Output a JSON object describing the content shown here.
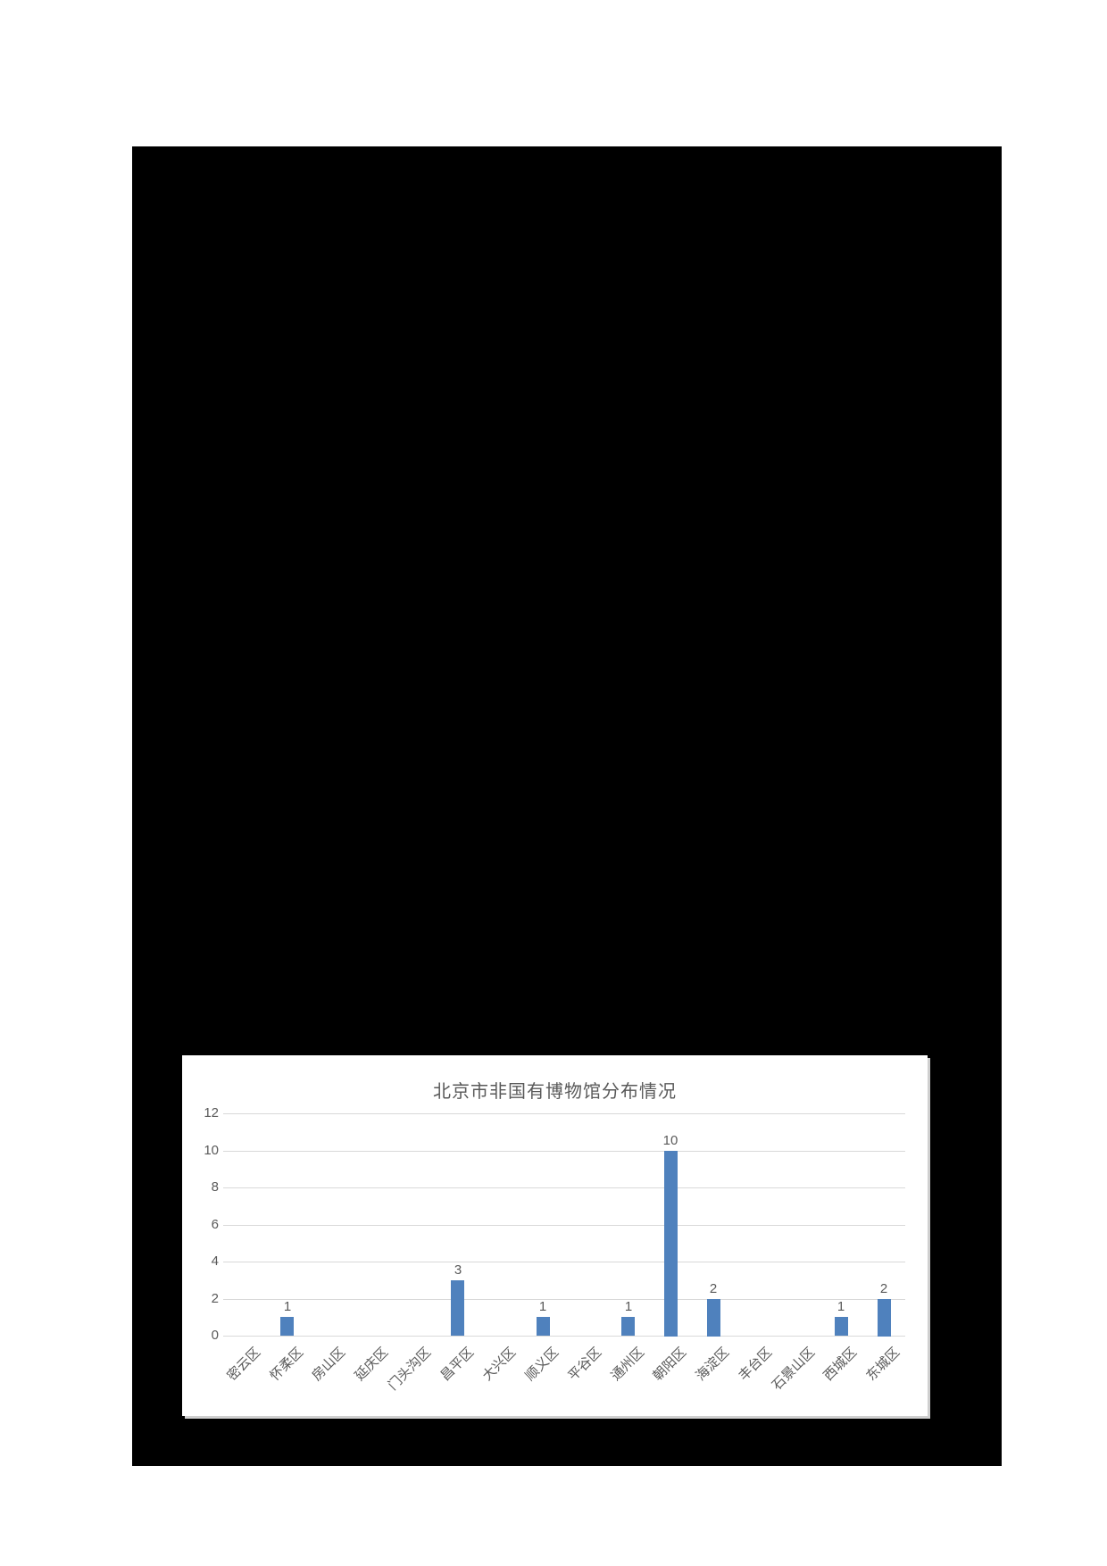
{
  "chart_data": {
    "type": "bar",
    "title": "北京市非国有博物馆分布情况",
    "categories": [
      "密云区",
      "怀柔区",
      "房山区",
      "延庆区",
      "门头沟区",
      "昌平区",
      "大兴区",
      "顺义区",
      "平谷区",
      "通州区",
      "朝阳区",
      "海淀区",
      "丰台区",
      "石景山区",
      "西城区",
      "东城区"
    ],
    "values": [
      0,
      1,
      0,
      0,
      0,
      3,
      0,
      1,
      0,
      1,
      10,
      2,
      0,
      0,
      1,
      2
    ],
    "data_labels": [
      "",
      "1",
      "",
      "",
      "",
      "3",
      "",
      "1",
      "",
      "1",
      "10",
      "2",
      "",
      "",
      "1",
      "2"
    ],
    "xlabel": "",
    "ylabel": "",
    "ylim": [
      0,
      12
    ],
    "yticks": [
      0,
      2,
      4,
      6,
      8,
      10,
      12
    ],
    "grid": true,
    "legend_position": "none",
    "x_label_rotation_deg": 45,
    "bar_color": "#4f81bd",
    "gridline_color": "#d9d9d9",
    "text_color": "#595959",
    "panel_background": "#ffffff",
    "page_background_block": "#000000"
  }
}
